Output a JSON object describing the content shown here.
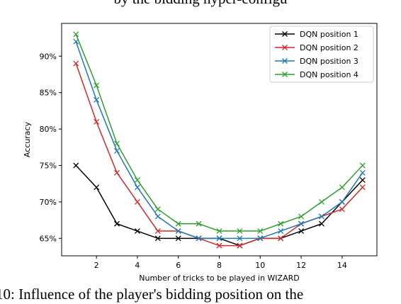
{
  "captions": {
    "top": "by the bidding hyper-configu",
    "bottom": "10: Influence of the player's bidding position on the"
  },
  "chart_data": {
    "type": "line",
    "title": "",
    "xlabel": "Number of tricks to be played in WIZARD",
    "ylabel": "Accuracy",
    "xlim": [
      0.3,
      15.7
    ],
    "ylim": [
      62.6,
      94.5
    ],
    "xticks": [
      2,
      4,
      6,
      8,
      10,
      12,
      14
    ],
    "yticks": [
      65,
      70,
      75,
      80,
      85,
      90
    ],
    "ytick_labels": [
      "65%",
      "70%",
      "75%",
      "80%",
      "85%",
      "90%"
    ],
    "x": [
      1,
      2,
      3,
      4,
      5,
      6,
      7,
      8,
      9,
      10,
      11,
      12,
      13,
      14,
      15
    ],
    "series": [
      {
        "name": "DQN position 1",
        "color": "#000000",
        "values": [
          75,
          72,
          67,
          66,
          65,
          65,
          65,
          65,
          64,
          65,
          65,
          66,
          67,
          70,
          73
        ]
      },
      {
        "name": "DQN position 2",
        "color": "#d62728",
        "values": [
          89,
          81,
          74,
          70,
          66,
          66,
          65,
          64,
          64,
          65,
          65,
          67,
          68,
          69,
          72
        ]
      },
      {
        "name": "DQN position 3",
        "color": "#1f77b4",
        "values": [
          92,
          84,
          77,
          72,
          68,
          66,
          65,
          65,
          65,
          65,
          66,
          67,
          68,
          70,
          74
        ]
      },
      {
        "name": "DQN position 4",
        "color": "#2ca02c",
        "values": [
          93,
          86,
          78,
          73,
          69,
          67,
          67,
          66,
          66,
          66,
          67,
          68,
          70,
          72,
          75
        ]
      }
    ],
    "grid": false,
    "legend_position": "top-right",
    "marker": "x"
  }
}
